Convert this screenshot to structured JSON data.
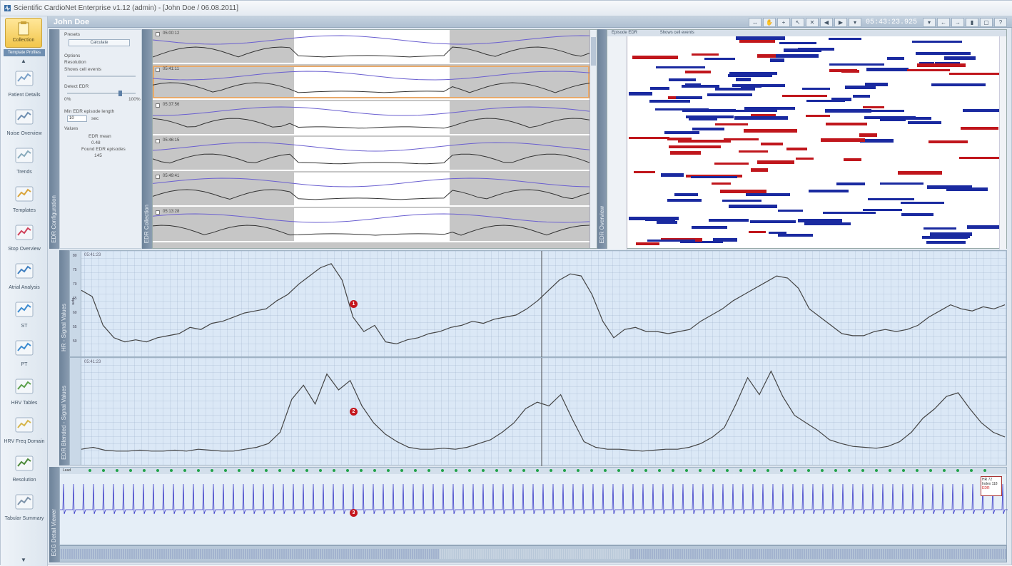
{
  "window": {
    "title": "Scientific CardioNet Enterprise v1.12 (admin) - [John Doe / 06.08.2011]"
  },
  "header": {
    "patient_name": "John Doe",
    "clock": "05:43:23.925"
  },
  "sidebar": {
    "top_button": "Collection",
    "top_tab": "Template Profiles",
    "items": [
      {
        "label": "Patient Details",
        "icon": "patient-details-icon"
      },
      {
        "label": "Noise Overview",
        "icon": "noise-overview-icon"
      },
      {
        "label": "Trends",
        "icon": "trends-icon"
      },
      {
        "label": "Templates",
        "icon": "templates-icon"
      },
      {
        "label": "Stop Overview",
        "icon": "stop-overview-icon"
      },
      {
        "label": "Atrial Analysis",
        "icon": "atrial-analysis-icon"
      },
      {
        "label": "ST",
        "icon": "st-icon"
      },
      {
        "label": "PT",
        "icon": "pt-icon"
      },
      {
        "label": "HRV Tables",
        "icon": "hrv-tables-icon"
      },
      {
        "label": "HRV Freq Domain",
        "icon": "hrv-freq-icon"
      },
      {
        "label": "Resolution",
        "icon": "resolution-icon"
      },
      {
        "label": "Tabular Summary",
        "icon": "tabular-summary-icon"
      }
    ]
  },
  "strips": {
    "config": "EDR Configuration",
    "epochs": "EDR Collection",
    "overview": "EDR Overview",
    "chart1": "HR - Signal Values",
    "chart2": "EDR Blended - Signal Values",
    "ecg": "ECG Detail Viewer"
  },
  "config_panel": {
    "section1": "Presets",
    "button": "Calculate",
    "section2": "Options",
    "options": [
      "Resolution",
      "Shows cell events",
      "Detect EDR"
    ],
    "slider_labels": [
      "0%",
      "100%"
    ],
    "spin_label": "Min EDR episode length",
    "spin_value": "10",
    "spin_unit": "sec",
    "section3": "Values",
    "values": [
      "EDR mean",
      "0.48",
      "Found EDR episodes",
      "145"
    ]
  },
  "epoch_rows": [
    {
      "time": "05:00:12",
      "selected": false
    },
    {
      "time": "05:41:11",
      "selected": true
    },
    {
      "time": "05:37:56",
      "selected": false
    },
    {
      "time": "05:46:15",
      "selected": false
    },
    {
      "time": "05:49:41",
      "selected": false
    },
    {
      "time": "05:13:28",
      "selected": false
    }
  ],
  "overview_panel": {
    "legend": [
      "Episode EDR",
      "Shows cell events"
    ]
  },
  "chart1": {
    "timestamp": "05:41:23",
    "ylabel": "bpm",
    "yticks": [
      "80",
      "75",
      "70",
      "65",
      "60",
      "55",
      "50"
    ]
  },
  "chart2": {
    "timestamp": "05:41:23"
  },
  "ecg": {
    "label": "Lead",
    "value_box": [
      "HR 72",
      "Index 118",
      "EDR"
    ]
  },
  "markers": [
    "1",
    "2",
    "3"
  ],
  "chart_data": [
    {
      "type": "line",
      "title": "",
      "series": [
        {
          "name": "",
          "values": [
            75,
            72,
            58,
            52,
            50,
            51,
            50,
            52,
            53,
            54,
            57,
            56,
            59,
            60,
            62,
            64,
            65,
            66,
            70,
            73,
            78,
            82,
            86,
            88,
            80,
            62,
            55,
            58,
            50,
            49,
            51,
            52,
            54,
            55,
            57,
            58,
            60,
            59,
            61,
            62,
            63,
            66,
            70,
            75,
            80,
            83,
            82,
            73,
            60,
            52,
            56,
            57,
            55,
            55,
            54,
            55,
            56,
            60,
            63,
            66,
            70,
            73,
            76,
            79,
            82,
            81,
            76,
            66,
            62,
            58,
            54,
            53,
            53,
            55,
            56,
            55,
            56,
            58,
            62,
            65,
            68,
            66,
            65,
            67,
            66,
            68
          ]
        }
      ]
    },
    {
      "type": "line",
      "title": "",
      "series": [
        {
          "name": "",
          "values": [
            12,
            14,
            11,
            10,
            10,
            11,
            10,
            10,
            11,
            10,
            12,
            11,
            10,
            10,
            12,
            14,
            18,
            30,
            65,
            80,
            60,
            92,
            75,
            85,
            58,
            40,
            28,
            20,
            14,
            12,
            12,
            13,
            12,
            14,
            18,
            22,
            30,
            40,
            55,
            62,
            58,
            70,
            44,
            20,
            14,
            12,
            12,
            11,
            10,
            11,
            12,
            12,
            14,
            18,
            25,
            35,
            60,
            88,
            70,
            95,
            68,
            48,
            40,
            32,
            22,
            18,
            15,
            14,
            13,
            15,
            20,
            30,
            45,
            55,
            68,
            72,
            55,
            40,
            30,
            25
          ]
        }
      ]
    }
  ]
}
